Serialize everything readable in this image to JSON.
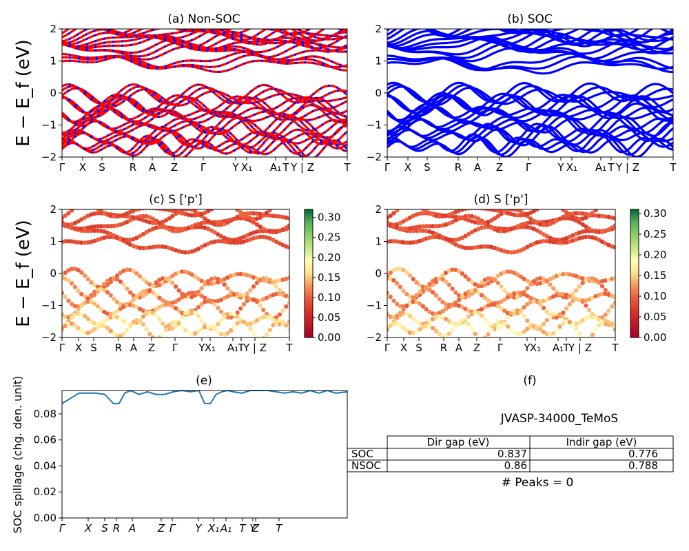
{
  "figure_title": "JVASP-34000_TeMoS",
  "chart_data": [
    {
      "id": "a",
      "type": "line",
      "title": "(a) Non-SOC",
      "ylabel": "E − E_f (eV)",
      "ylim": [
        -2,
        2
      ],
      "yticks": [
        "2",
        "1",
        "0",
        "−1",
        "−2"
      ],
      "xticks": [
        "Γ",
        "X",
        "S",
        "R",
        "A",
        "Z",
        "Γ",
        "Y",
        "X₁",
        "A₁",
        "T",
        "Y | Z",
        "T"
      ],
      "colors": [
        "#ff0000",
        "#0000ff"
      ],
      "series": [
        {
          "values": [
            0.9,
            1.3,
            1.55,
            1.75,
            1.95
          ]
        },
        {
          "values": [
            -0.15,
            -0.45,
            -0.75,
            -1.1,
            -1.45,
            -1.75
          ]
        }
      ]
    },
    {
      "id": "b",
      "type": "line",
      "title": "(b) SOC",
      "ylim": [
        -2,
        2
      ],
      "yticks": [
        "2",
        "1",
        "0",
        "−1",
        "−2"
      ],
      "xticks": [
        "Γ",
        "X",
        "S",
        "R",
        "A",
        "Z",
        "Γ",
        "Y",
        "X₁",
        "A₁",
        "T",
        "Y | Z",
        "T"
      ],
      "colors": [
        "#0000ff"
      ],
      "series": [
        {
          "values": [
            0.85,
            1.25,
            1.5,
            1.7,
            1.9
          ]
        },
        {
          "values": [
            -0.1,
            -0.4,
            -0.7,
            -1.05,
            -1.35,
            -1.7
          ]
        }
      ]
    },
    {
      "id": "c",
      "type": "scatter",
      "title": "(c)  S ['p']",
      "ylabel": "E − E_f (eV)",
      "ylim": [
        -2,
        2
      ],
      "yticks": [
        "2",
        "1",
        "0",
        "−1",
        "−2"
      ],
      "xticks": [
        "Γ",
        "X",
        "S",
        "R",
        "A",
        "Z",
        "Γ",
        "Y",
        "X₁",
        "A₁",
        "T",
        "Y | Z",
        "T"
      ],
      "colorbar": {
        "min": 0.0,
        "max": 0.32,
        "ticks": [
          "0.00",
          "0.05",
          "0.10",
          "0.15",
          "0.20",
          "0.25",
          "0.30"
        ],
        "colormap": "RdYlGn"
      }
    },
    {
      "id": "d",
      "type": "scatter",
      "title": "(d) S ['p']",
      "ylim": [
        -2,
        2
      ],
      "yticks": [
        "2",
        "1",
        "0",
        "−1",
        "−2"
      ],
      "xticks": [
        "Γ",
        "X",
        "S",
        "R",
        "A",
        "Z",
        "Γ",
        "Y",
        "X₁",
        "A₁",
        "T",
        "Y | Z",
        "T"
      ],
      "colorbar": {
        "min": 0.0,
        "max": 0.31,
        "ticks": [
          "0.00",
          "0.05",
          "0.10",
          "0.15",
          "0.20",
          "0.25",
          "0.30"
        ],
        "colormap": "RdYlGn"
      }
    },
    {
      "id": "e",
      "type": "line",
      "title": "(e)",
      "ylabel": "SOC spillage (chg. den. unit)",
      "ylim": [
        0,
        0.098
      ],
      "yticks": [
        "0.00",
        "0.02",
        "0.04",
        "0.06",
        "0.08"
      ],
      "xticks": [
        "Γ",
        "X",
        "S",
        "R",
        "A",
        "Z",
        "Γ",
        "Y",
        "X₁",
        "A₁",
        "T",
        "Y",
        "Z",
        "T"
      ],
      "color": "#1f77b4",
      "x": [
        0,
        0.03,
        0.06,
        0.09,
        0.12,
        0.15,
        0.18,
        0.2,
        0.22,
        0.24,
        0.27,
        0.3,
        0.33,
        0.36,
        0.39,
        0.42,
        0.45,
        0.48,
        0.5,
        0.52,
        0.54,
        0.56,
        0.58,
        0.6,
        0.63,
        0.66,
        0.69,
        0.72,
        0.75,
        0.78,
        0.81,
        0.84,
        0.87,
        0.9,
        0.93,
        0.96,
        1.0
      ],
      "y": [
        0.088,
        0.092,
        0.096,
        0.096,
        0.096,
        0.095,
        0.088,
        0.088,
        0.096,
        0.098,
        0.095,
        0.097,
        0.095,
        0.095,
        0.097,
        0.098,
        0.097,
        0.098,
        0.088,
        0.088,
        0.095,
        0.097,
        0.098,
        0.097,
        0.096,
        0.098,
        0.098,
        0.098,
        0.097,
        0.096,
        0.097,
        0.096,
        0.098,
        0.096,
        0.098,
        0.096,
        0.097
      ]
    }
  ],
  "panel_f": {
    "title": "(f)",
    "table": {
      "headers": [
        "",
        "Dir gap (eV)",
        "Indir gap (eV)"
      ],
      "rows": [
        {
          "label": "SOC",
          "dir": "0.837",
          "indir": "0.776"
        },
        {
          "label": "NSOC",
          "dir": "0.86",
          "indir": "0.788"
        }
      ]
    },
    "peaks": "# Peaks = 0"
  }
}
